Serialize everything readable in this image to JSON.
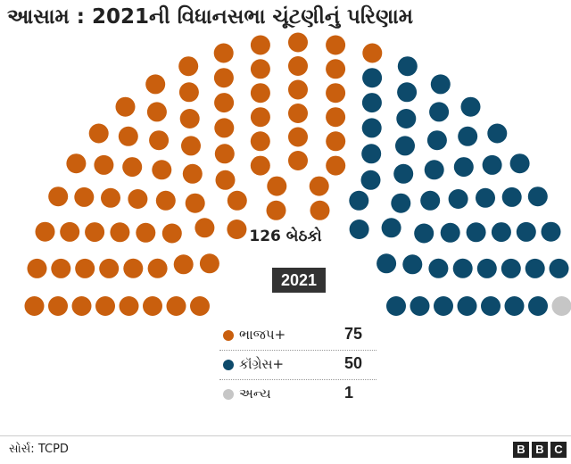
{
  "header": {
    "title": "આસામ : 2021ની વિધાનસભા ચૂંટણીનું પરિણામ"
  },
  "chart_data": {
    "type": "parliament",
    "title": "આસામ : 2021ની વિધાનસભા ચૂંટણીનું પરિણામ",
    "total_label": "126 બેઠકો",
    "year_label": "2021",
    "total_seats": 126,
    "series": [
      {
        "name": "ભાજપ+",
        "value": 75,
        "display_value": "75",
        "color": "#c95f0e"
      },
      {
        "name": "કૉંગ્રેસ+",
        "value": 50,
        "display_value": "50",
        "color": "#0d4a6b"
      },
      {
        "name": "અન્ય",
        "value": 1,
        "display_value": "1",
        "color": "#c6c6c6"
      }
    ],
    "legend": "bottom-center"
  },
  "footer": {
    "source": "સોર્સ: TCPD",
    "logo_letters": [
      "B",
      "B",
      "C"
    ]
  }
}
